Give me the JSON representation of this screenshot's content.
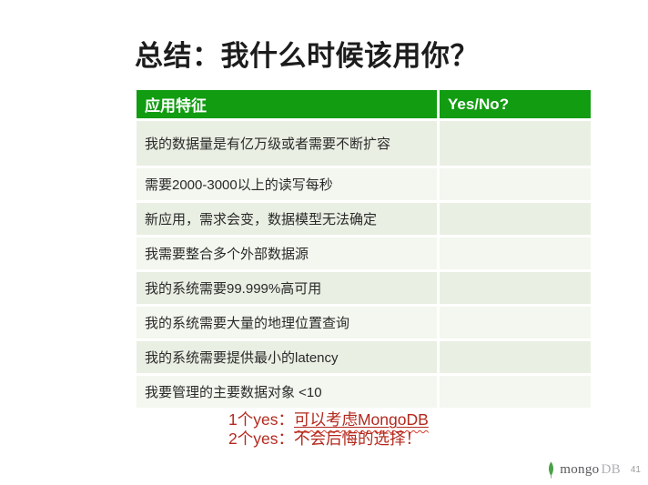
{
  "slide": {
    "title": "总结：我什么时候该用你？",
    "page_number": "41"
  },
  "table": {
    "headers": [
      "应用特征",
      "Yes/No?"
    ],
    "rows": [
      "我的数据量是有亿万级或者需要不断扩容",
      "需要2000-3000以上的读写每秒",
      "新应用，需求会变，数据模型无法确定",
      "我需要整合多个外部数据源",
      "我的系统需要99.999%高可用",
      "我的系统需要大量的地理位置查询",
      "我的系统需要提供最小的latency",
      "我要管理的主要数据对象 <10"
    ],
    "yesno_values": [
      "",
      "",
      "",
      "",
      "",
      "",
      "",
      ""
    ]
  },
  "conclusion": {
    "line1_prefix": "1个yes：",
    "line1_highlight": "可以考虑MongoDB",
    "line2": "2个yes：不会后悔的选择！"
  },
  "brand": {
    "name_primary": "mongo",
    "name_secondary": "DB",
    "leaf_icon": "mongodb-leaf-icon"
  },
  "colors": {
    "header_green": "#119c11",
    "row_light_green_odd": "#e9efe3",
    "row_light_green_even": "#f3f7ef",
    "accent_red": "#b3291e",
    "leaf_green": "#4aa247",
    "title_black": "#1c1c1c"
  }
}
